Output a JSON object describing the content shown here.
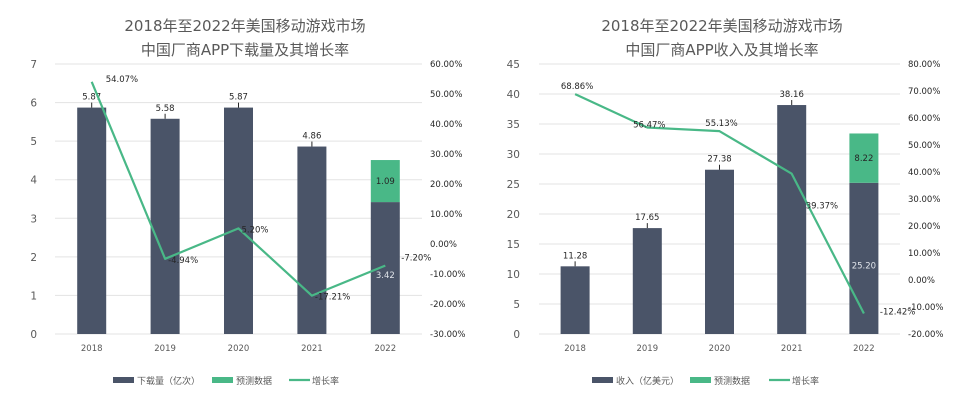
{
  "colors": {
    "actual": "#4a5468",
    "forecast": "#49b887",
    "growth": "#49b887",
    "grid": "#e3e3e3"
  },
  "chart_data": [
    {
      "type": "bar",
      "title": [
        "2018年至2022年美国移动游戏市场",
        "中国厂商APP下载量及其增长率"
      ],
      "categories": [
        "2018",
        "2019",
        "2020",
        "2021",
        "2022"
      ],
      "ylim": [
        0,
        7
      ],
      "yticks": [
        "0",
        "1",
        "2",
        "3",
        "4",
        "5",
        "6",
        "7"
      ],
      "y2lim": [
        -30,
        60
      ],
      "y2ticks": [
        "-30.00%",
        "-20.00%",
        "-10.00%",
        "0.00%",
        "10.00%",
        "20.00%",
        "30.00%",
        "40.00%",
        "50.00%",
        "60.00%"
      ],
      "grid": true,
      "legend_position": "bottom",
      "series": [
        {
          "name": "下载量（亿次）",
          "type": "bar",
          "values": [
            5.87,
            5.58,
            5.87,
            4.86,
            3.42
          ],
          "labels": [
            "5.87",
            "5.58",
            "5.87",
            "4.86",
            "3.42"
          ]
        },
        {
          "name": "预测数据",
          "type": "bar-stacked",
          "values": [
            null,
            null,
            null,
            null,
            1.09
          ],
          "labels": [
            "",
            "",
            "",
            "",
            "1.09"
          ]
        },
        {
          "name": "增长率",
          "type": "line",
          "axis": "right",
          "values": [
            54.07,
            -4.94,
            5.2,
            -17.21,
            -7.2
          ],
          "labels": [
            "54.07%",
            "-4.94%",
            "5.20%",
            "-17.21%",
            "-7.20%"
          ]
        }
      ]
    },
    {
      "type": "bar",
      "title": [
        "2018年至2022年美国移动游戏市场",
        "中国厂商APP收入及其增长率"
      ],
      "categories": [
        "2018",
        "2019",
        "2020",
        "2021",
        "2022"
      ],
      "ylim": [
        0,
        45
      ],
      "yticks": [
        "0",
        "5",
        "10",
        "15",
        "20",
        "25",
        "30",
        "35",
        "40",
        "45"
      ],
      "y2lim": [
        -20,
        80
      ],
      "y2ticks": [
        "-20.00%",
        "-10.00%",
        "0.00%",
        "10.00%",
        "20.00%",
        "30.00%",
        "40.00%",
        "50.00%",
        "60.00%",
        "70.00%",
        "80.00%"
      ],
      "grid": true,
      "legend_position": "bottom",
      "series": [
        {
          "name": "收入（亿美元）",
          "type": "bar",
          "values": [
            11.28,
            17.65,
            27.38,
            38.16,
            25.2
          ],
          "labels": [
            "11.28",
            "17.65",
            "27.38",
            "38.16",
            "25.20"
          ]
        },
        {
          "name": "预测数据",
          "type": "bar-stacked",
          "values": [
            null,
            null,
            null,
            null,
            8.22
          ],
          "labels": [
            "",
            "",
            "",
            "",
            "8.22"
          ]
        },
        {
          "name": "增长率",
          "type": "line",
          "axis": "right",
          "values": [
            68.86,
            56.47,
            55.13,
            39.37,
            -12.42
          ],
          "labels": [
            "68.86%",
            "56.47%",
            "55.13%",
            "39.37%",
            "-12.42%"
          ]
        }
      ]
    }
  ]
}
